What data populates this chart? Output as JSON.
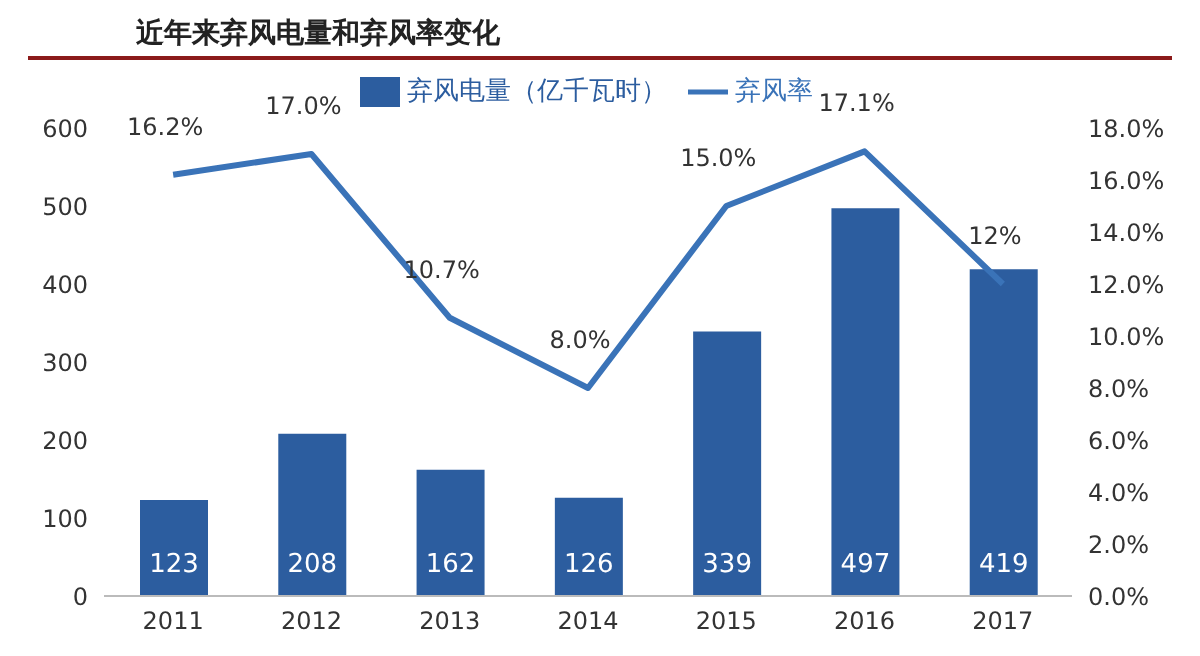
{
  "chart_data": {
    "type": "bar",
    "title": "近年来弃风电量和弃风率变化",
    "categories": [
      "2011",
      "2012",
      "2013",
      "2014",
      "2015",
      "2016",
      "2017"
    ],
    "series": [
      {
        "name": "弃风电量（亿千瓦时）",
        "color": "#2c5d9f",
        "values": [
          123,
          208,
          162,
          126,
          339,
          497,
          419
        ],
        "value_labels": [
          "123",
          "208",
          "162",
          "126",
          "339",
          "497",
          "419"
        ]
      },
      {
        "name": "弃风率",
        "type": "line",
        "axis": "y2",
        "color": "#3a73b8",
        "values": [
          16.2,
          17.0,
          10.7,
          8.0,
          15.0,
          17.1,
          12
        ],
        "value_labels": [
          "16.2%",
          "17.0%",
          "10.7%",
          "8.0%",
          "15.0%",
          "17.1%",
          "12%"
        ]
      }
    ],
    "ylim": [
      0,
      600
    ],
    "yticks": [
      0,
      100,
      200,
      300,
      400,
      500,
      600
    ],
    "y2lim": [
      0,
      18
    ],
    "y2ticks": [
      {
        "value": 0,
        "label": "0.0%"
      },
      {
        "value": 2,
        "label": "2.0%"
      },
      {
        "value": 4,
        "label": "4.0%"
      },
      {
        "value": 6,
        "label": "6.0%"
      },
      {
        "value": 8,
        "label": "8.0%"
      },
      {
        "value": 10,
        "label": "10.0%"
      },
      {
        "value": 12,
        "label": "12.0%"
      },
      {
        "value": 14,
        "label": "14.0%"
      },
      {
        "value": 16,
        "label": "16.0%"
      },
      {
        "value": 18,
        "label": "18.0%"
      }
    ],
    "legend": "top",
    "marker": "none"
  }
}
